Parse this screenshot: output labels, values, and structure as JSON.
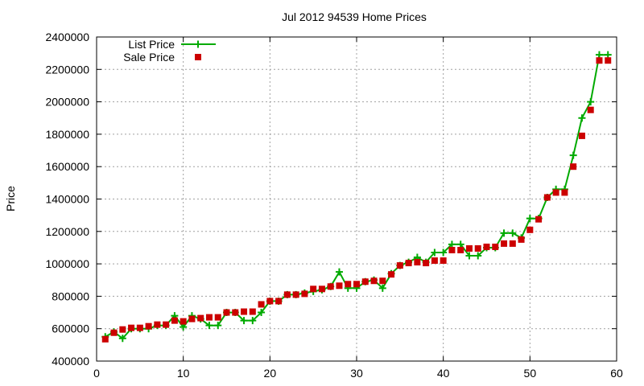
{
  "chart_data": {
    "type": "line",
    "title": "Jul 2012 94539 Home Prices",
    "xlabel": "",
    "ylabel": "Price",
    "xlim": [
      0,
      60
    ],
    "ylim": [
      400000,
      2400000
    ],
    "x_ticks": [
      "0",
      "10",
      "20",
      "30",
      "40",
      "50",
      "60"
    ],
    "y_ticks": [
      "400000",
      "600000",
      "800000",
      "1000000",
      "1200000",
      "1400000",
      "1600000",
      "1800000",
      "2000000",
      "2200000",
      "2400000"
    ],
    "grid": true,
    "legend_position": "top-left",
    "x": [
      1,
      2,
      3,
      4,
      5,
      6,
      7,
      8,
      9,
      10,
      11,
      12,
      13,
      14,
      15,
      16,
      17,
      18,
      19,
      20,
      21,
      22,
      23,
      24,
      25,
      26,
      27,
      28,
      29,
      30,
      31,
      32,
      33,
      34,
      35,
      36,
      37,
      38,
      39,
      40,
      41,
      42,
      43,
      44,
      45,
      46,
      47,
      48,
      49,
      50,
      51,
      52,
      53,
      54,
      55,
      56,
      57,
      58,
      59
    ],
    "series": [
      {
        "name": "List Price",
        "color": "#00aa00",
        "marker": "plus",
        "values": [
          550000,
          580000,
          540000,
          600000,
          600000,
          600000,
          620000,
          620000,
          680000,
          610000,
          680000,
          660000,
          620000,
          620000,
          700000,
          700000,
          650000,
          650000,
          700000,
          770000,
          770000,
          810000,
          810000,
          820000,
          830000,
          840000,
          860000,
          950000,
          850000,
          850000,
          890000,
          900000,
          850000,
          940000,
          990000,
          1010000,
          1040000,
          1010000,
          1070000,
          1070000,
          1120000,
          1120000,
          1050000,
          1050000,
          1100000,
          1100000,
          1190000,
          1190000,
          1160000,
          1280000,
          1280000,
          1410000,
          1460000,
          1460000,
          1670000,
          1900000,
          2000000,
          2290000,
          2290000
        ]
      },
      {
        "name": "Sale Price",
        "color": "#cc0000",
        "marker": "square",
        "values": [
          535000,
          575000,
          595000,
          605000,
          605000,
          615000,
          625000,
          625000,
          650000,
          645000,
          660000,
          665000,
          670000,
          670000,
          700000,
          700000,
          705000,
          705000,
          750000,
          770000,
          770000,
          810000,
          810000,
          815000,
          845000,
          845000,
          860000,
          865000,
          875000,
          875000,
          890000,
          895000,
          895000,
          935000,
          990000,
          1005000,
          1010000,
          1005000,
          1020000,
          1020000,
          1085000,
          1085000,
          1095000,
          1095000,
          1105000,
          1105000,
          1125000,
          1125000,
          1150000,
          1210000,
          1275000,
          1410000,
          1440000,
          1440000,
          1600000,
          1790000,
          1950000,
          2255000,
          2255000
        ]
      }
    ]
  }
}
